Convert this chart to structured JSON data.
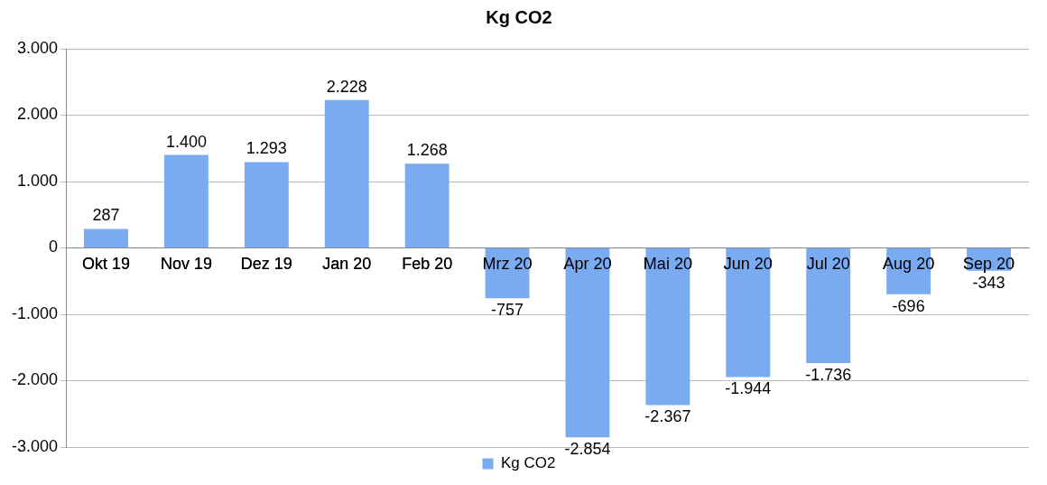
{
  "chart_data": {
    "type": "bar",
    "title": "Kg CO2",
    "categories": [
      "Okt 19",
      "Nov 19",
      "Dez 19",
      "Jan 20",
      "Feb 20",
      "Mrz 20",
      "Apr 20",
      "Mai 20",
      "Jun 20",
      "Jul 20",
      "Aug 20",
      "Sep 20"
    ],
    "series": [
      {
        "name": "Kg CO2",
        "color": "#7aaaf0",
        "values": [
          287,
          1400,
          1293,
          2228,
          1268,
          -757,
          -2854,
          -2367,
          -1944,
          -1736,
          -696,
          -343
        ],
        "value_labels": [
          "287",
          "1.400",
          "1.293",
          "2.228",
          "1.268",
          "-757",
          "-2.854",
          "-2.367",
          "-1.944",
          "-1.736",
          "-696",
          "-343"
        ]
      }
    ],
    "ylim": [
      -3000,
      3000
    ],
    "yticks": [
      {
        "value": -3000,
        "label": "-3.000"
      },
      {
        "value": -2000,
        "label": "-2.000"
      },
      {
        "value": -1000,
        "label": "-1.000"
      },
      0,
      {
        "value": 1000,
        "label": "1.000"
      },
      {
        "value": 2000,
        "label": "2.000"
      },
      {
        "value": 3000,
        "label": "3.000"
      }
    ],
    "grid": "y",
    "legend": "bottom"
  }
}
